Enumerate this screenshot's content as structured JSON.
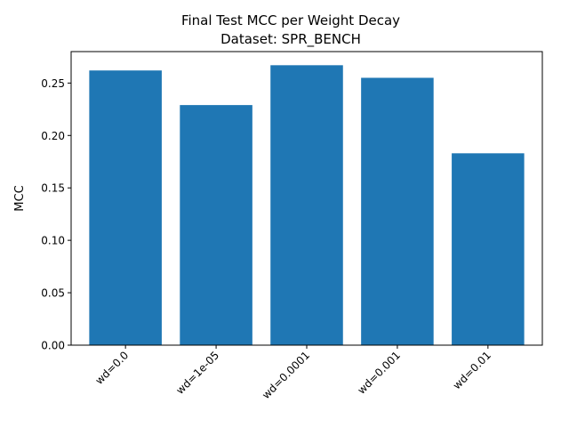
{
  "chart_data": {
    "type": "bar",
    "title_line1": "Final Test MCC per Weight Decay",
    "title_line2": "Dataset: SPR_BENCH",
    "categories": [
      "wd=0.0",
      "wd=1e-05",
      "wd=0.0001",
      "wd=0.001",
      "wd=0.01"
    ],
    "values": [
      0.262,
      0.229,
      0.267,
      0.255,
      0.183
    ],
    "xlabel": "",
    "ylabel": "MCC",
    "ylim": [
      0,
      0.28
    ],
    "yticks": [
      0.0,
      0.05,
      0.1,
      0.15,
      0.2,
      0.25
    ],
    "ytick_labels": [
      "0.00",
      "0.05",
      "0.10",
      "0.15",
      "0.20",
      "0.25"
    ],
    "bar_color": "#1f77b4",
    "grid": false,
    "legend": "none"
  }
}
